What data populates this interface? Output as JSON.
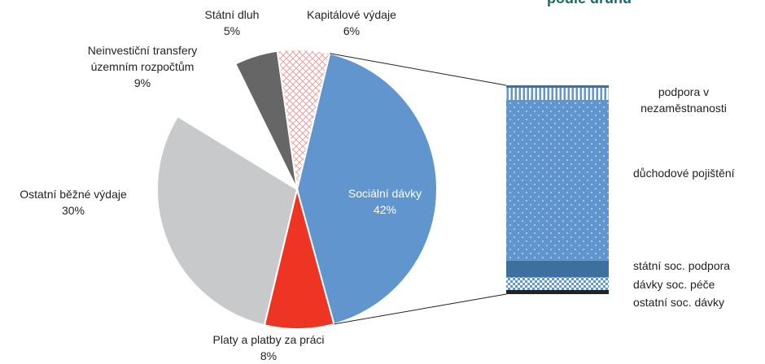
{
  "chart_data": {
    "type": "pie",
    "title": "podle druhu",
    "categories": [
      "Sociální dávky",
      "Platy a platby za práci",
      "Ostatní běžné výdaje",
      "Neinvestiční transfery územním rozpočtům",
      "Státní dluh",
      "Kapitálové výdaje"
    ],
    "values": [
      42,
      8,
      30,
      9,
      5,
      6
    ],
    "value_labels": [
      "42%",
      "8%",
      "30%",
      "9%",
      "5%",
      "6%"
    ],
    "colors": [
      "#6096cd",
      "#ee3524",
      "#c8c9cb",
      "#ffffff",
      "#666666",
      "#f4b6b6"
    ],
    "patterns": [
      "solid",
      "solid",
      "solid",
      "solid",
      "solid",
      "crosshatch"
    ],
    "breakdown": {
      "type": "stacked-bar",
      "categories": [
        "podpora v nezaměstnanosti",
        "důchodové pojištění",
        "státní soc. podpora",
        "dávky soc. péče",
        "ostatní soc. dávky"
      ],
      "values": [
        7,
        77,
        8,
        6,
        2
      ],
      "colors": [
        "#6096cd",
        "#6096cd",
        "#3d6f9f",
        "#6096cd",
        "#222222"
      ],
      "patterns": [
        "stripes",
        "dots",
        "solid",
        "checker",
        "solid"
      ]
    }
  }
}
